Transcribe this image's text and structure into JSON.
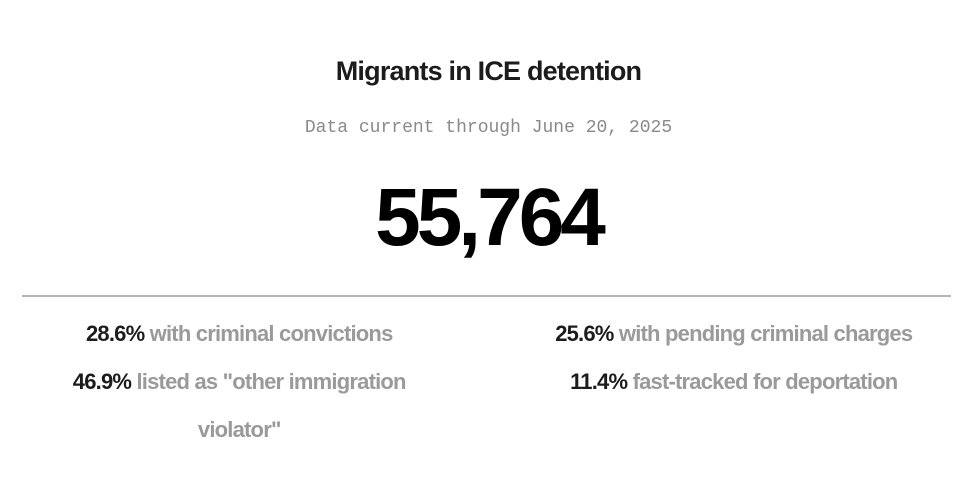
{
  "header": {
    "title": "Migrants in ICE detention",
    "subtitle": "Data current through June 20, 2025"
  },
  "total": "55,764",
  "stats": [
    {
      "value": "28.6%",
      "label": "with criminal convictions"
    },
    {
      "value": "25.6%",
      "label": "with pending criminal charges"
    },
    {
      "value": "46.9%",
      "label": "listed as \"other immigration violator\""
    },
    {
      "value": "11.4%",
      "label": "fast-tracked for deportation"
    }
  ]
}
